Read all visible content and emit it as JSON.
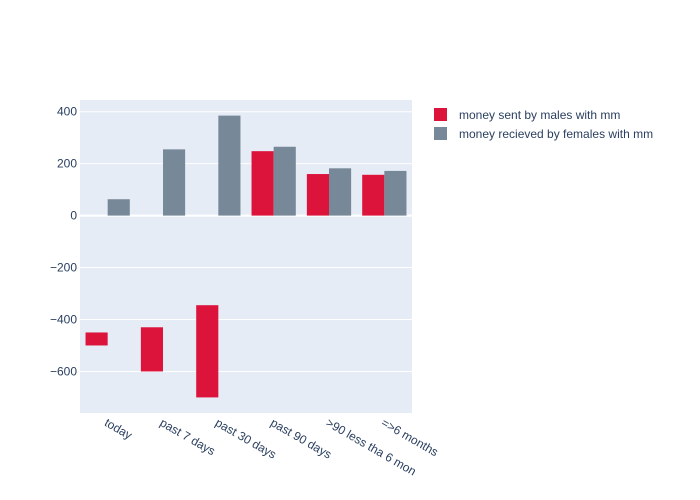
{
  "chart_data": {
    "type": "bar",
    "categories": [
      "today",
      "past 7 days",
      "past 30 days",
      "past 90 days",
      ">90 less tha 6 mon",
      "=>6 months"
    ],
    "series": [
      {
        "name": "money sent by males with mm",
        "color": "#dc143c",
        "bars": [
          {
            "base": -500,
            "top": -450
          },
          {
            "base": -600,
            "top": -430
          },
          {
            "base": -700,
            "top": -345
          },
          {
            "base": 0,
            "top": 248
          },
          {
            "base": 0,
            "top": 160
          },
          {
            "base": 0,
            "top": 157
          }
        ]
      },
      {
        "name": "money recieved by females with mm",
        "color": "#778899",
        "bars": [
          {
            "base": 0,
            "top": 63
          },
          {
            "base": 0,
            "top": 255
          },
          {
            "base": 0,
            "top": 385
          },
          {
            "base": 0,
            "top": 265
          },
          {
            "base": 0,
            "top": 182
          },
          {
            "base": 0,
            "top": 172
          }
        ]
      }
    ],
    "y_ticks": [
      400,
      200,
      0,
      -200,
      -400,
      -600
    ],
    "y_tick_labels": [
      "400",
      "200",
      "0",
      "−200",
      "−400",
      "−600"
    ],
    "ylim": [
      -760,
      445
    ],
    "grid": true,
    "legend_position": "top-right",
    "plot_background": "#e5ecf6"
  }
}
